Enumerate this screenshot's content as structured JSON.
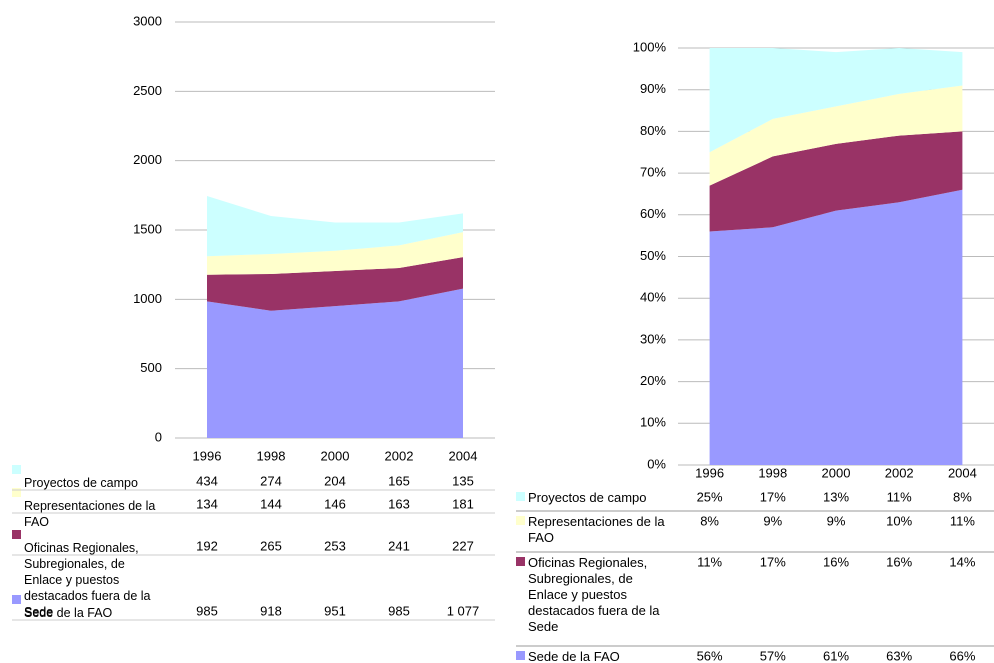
{
  "chart_data": [
    {
      "type": "area",
      "stacked": true,
      "categories": [
        "1996",
        "1998",
        "2000",
        "2002",
        "2004"
      ],
      "ylim": [
        0,
        3000
      ],
      "yticks": [
        0,
        500,
        1000,
        1500,
        2000,
        2500,
        3000
      ],
      "grid": true,
      "series": [
        {
          "name": "Proyectos de campo",
          "color": "#ccffff",
          "values": [
            434,
            274,
            204,
            165,
            135
          ]
        },
        {
          "name": "Representaciones de la FAO",
          "color": "#ffffcc",
          "values": [
            134,
            144,
            146,
            163,
            181
          ]
        },
        {
          "name": "Oficinas Regionales, Subregionales, de Enlace y puestos destacados fuera de la Sede",
          "color": "#993366",
          "values": [
            192,
            265,
            253,
            241,
            227
          ]
        },
        {
          "name": "Sede de la FAO",
          "color": "#9999ff",
          "values": [
            985,
            918,
            951,
            985,
            1077
          ],
          "value_labels": [
            "985",
            "918",
            "951",
            "985",
            "1 077"
          ]
        }
      ]
    },
    {
      "type": "area",
      "stacked": true,
      "categories": [
        "1996",
        "1998",
        "2000",
        "2002",
        "2004"
      ],
      "ylim": [
        0,
        100
      ],
      "yticks": [
        {
          "value": 0,
          "label": "0%"
        },
        {
          "value": 10,
          "label": "10%"
        },
        {
          "value": 20,
          "label": "20%"
        },
        {
          "value": 30,
          "label": "30%"
        },
        {
          "value": 40,
          "label": "40%"
        },
        {
          "value": 50,
          "label": "50%"
        },
        {
          "value": 60,
          "label": "60%"
        },
        {
          "value": 70,
          "label": "70%"
        },
        {
          "value": 80,
          "label": "80%"
        },
        {
          "value": 90,
          "label": "90%"
        },
        {
          "value": 100,
          "label": "100%"
        }
      ],
      "grid": true,
      "series": [
        {
          "name": "Proyectos de campo",
          "color": "#ccffff",
          "values": [
            25,
            17,
            13,
            11,
            8
          ],
          "value_labels": [
            "25%",
            "17%",
            "13%",
            "11%",
            "8%"
          ]
        },
        {
          "name": "Representaciones de la FAO",
          "color": "#ffffcc",
          "values": [
            8,
            9,
            9,
            10,
            11
          ],
          "value_labels": [
            "8%",
            "9%",
            "9%",
            "10%",
            "11%"
          ]
        },
        {
          "name": "Oficinas Regionales, Subregionales, de Enlace y puestos destacados fuera de la Sede",
          "color": "#993366",
          "values": [
            11,
            17,
            16,
            16,
            14
          ],
          "value_labels": [
            "11%",
            "17%",
            "16%",
            "16%",
            "14%"
          ]
        },
        {
          "name": "Sede de la FAO",
          "color": "#9999ff",
          "values": [
            56,
            57,
            61,
            63,
            66
          ],
          "value_labels": [
            "56%",
            "57%",
            "61%",
            "63%",
            "66%"
          ]
        }
      ]
    }
  ]
}
